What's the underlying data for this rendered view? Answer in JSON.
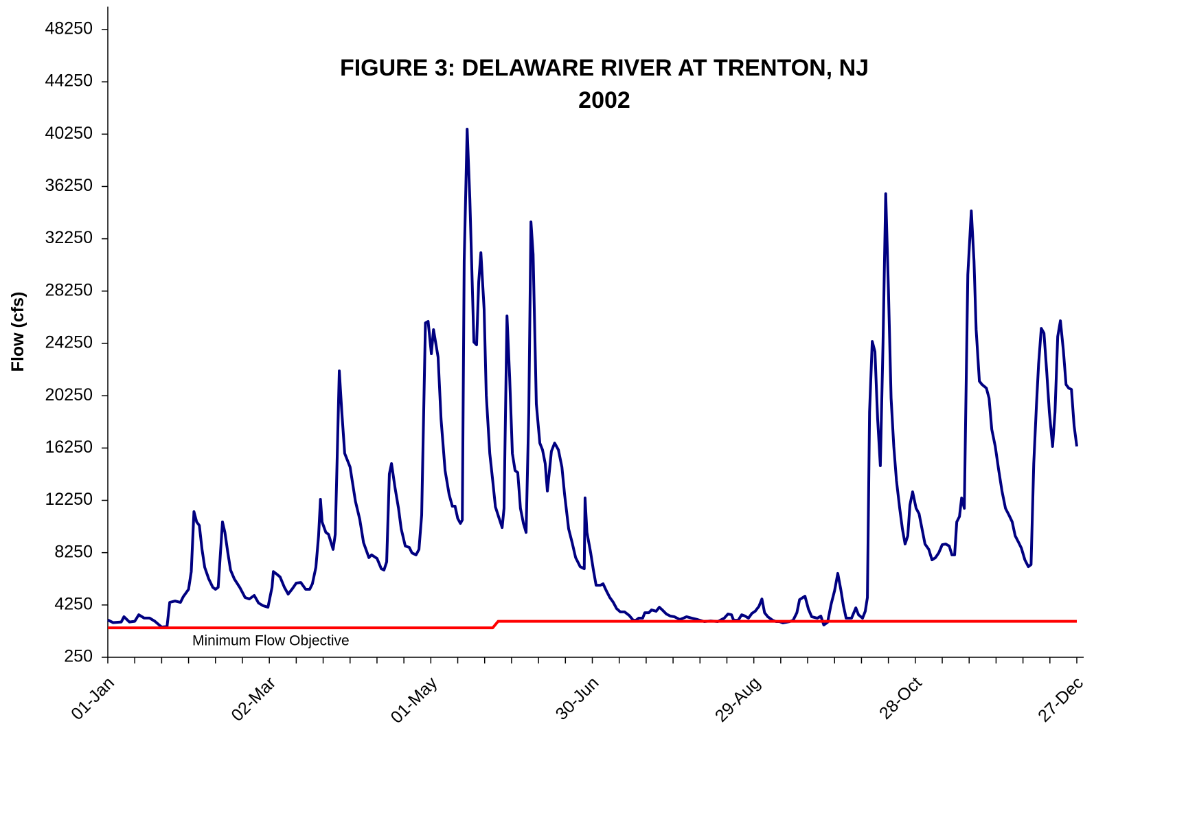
{
  "chart_data": {
    "type": "line",
    "title": "FIGURE 3: DELAWARE RIVER AT TRENTON, NJ",
    "subtitle": "2002",
    "y_label": "Flow (cfs)",
    "annotation": "Minimum Flow Objective",
    "xlim": [
      0,
      360
    ],
    "xticks": [
      {
        "value": 0,
        "label": "01-Jan"
      },
      {
        "value": 60,
        "label": "02-Mar"
      },
      {
        "value": 120,
        "label": "01-May"
      },
      {
        "value": 180,
        "label": "30-Jun"
      },
      {
        "value": 240,
        "label": "29-Aug"
      },
      {
        "value": 300,
        "label": "28-Oct"
      },
      {
        "value": 360,
        "label": "27-Dec"
      }
    ],
    "xminorticks": [
      10,
      20,
      30,
      40,
      50,
      70,
      80,
      90,
      100,
      110,
      130,
      140,
      150,
      160,
      170,
      190,
      200,
      210,
      220,
      230,
      250,
      260,
      270,
      280,
      290,
      310,
      320,
      330,
      340,
      350
    ],
    "ylim": [
      250,
      50000
    ],
    "yticks": [
      250,
      4250,
      8250,
      12250,
      16250,
      20250,
      24250,
      28250,
      32250,
      36250,
      40250,
      44250,
      48250
    ],
    "series": [
      {
        "name": "Flow",
        "color": "#000080",
        "x": [
          0,
          2,
          5,
          6,
          8,
          10,
          11.5,
          13.5,
          15.5,
          17.5,
          20,
          22,
          23,
          25,
          27,
          28,
          30,
          31,
          32,
          33,
          34,
          35,
          36,
          37.5,
          39,
          40,
          41,
          42.6,
          43.5,
          44.6,
          45.6,
          47,
          49,
          51,
          52.6,
          54.4,
          56,
          57.7,
          59.5,
          61,
          61.5,
          62.8,
          64,
          65.6,
          67,
          68.6,
          70,
          71.7,
          73.5,
          75,
          76,
          77.3,
          78.3,
          79,
          79.6,
          81,
          82,
          83.7,
          84.5,
          85,
          86,
          86.9,
          88,
          90,
          92,
          93.6,
          95,
          97,
          98,
          100,
          101.6,
          102.6,
          103.6,
          104.6,
          105.4,
          106.7,
          108,
          109,
          110.5,
          112,
          113,
          114.5,
          115.6,
          116.6,
          118,
          119,
          120.2,
          121,
          122.7,
          123.8,
          125.3,
          126.8,
          128,
          129,
          130,
          131,
          131.7,
          132.4,
          133.5,
          134.5,
          136,
          137,
          137.8,
          138.6,
          139.8,
          140.6,
          141.9,
          143,
          144,
          145.4,
          146.5,
          147.2,
          148.3,
          149.3,
          150.3,
          151.3,
          152.3,
          153.3,
          154.4,
          155.4,
          156.4,
          157.2,
          158,
          159.2,
          160.5,
          161.5,
          162.5,
          163.3,
          164,
          164.8,
          166,
          167.4,
          168.7,
          169.7,
          171.2,
          172.5,
          173.8,
          175.5,
          177,
          177.3,
          178,
          179.4,
          180.4,
          181.4,
          183,
          184,
          185.2,
          186.5,
          187.8,
          189,
          190.4,
          192,
          193.7,
          195.2,
          196.2,
          197.2,
          198.7,
          199.5,
          201,
          202,
          203.7,
          204.9,
          206,
          207.5,
          209,
          210.5,
          212.5,
          213.8,
          215,
          217,
          219,
          221.6,
          224,
          226.6,
          229,
          230.4,
          231.7,
          232.5,
          234.2,
          235.5,
          236.8,
          238,
          239.3,
          240.5,
          241.9,
          243,
          244,
          245.2,
          247,
          248.3,
          249.5,
          250.8,
          253.3,
          254.6,
          256,
          257,
          259,
          260.3,
          261.5,
          263.6,
          264.9,
          266,
          267.4,
          268.7,
          270,
          271.2,
          272.3,
          273.3,
          274.3,
          276.3,
          277.9,
          278.9,
          280.4,
          281.4,
          282.2,
          283,
          284,
          285,
          286,
          287,
          288,
          289,
          290,
          291,
          292,
          293,
          294.2,
          295.2,
          296.2,
          297.2,
          298,
          299,
          300.3,
          301.4,
          302.4,
          303.6,
          305,
          306.2,
          307.5,
          308.7,
          310,
          311.3,
          312.6,
          313.6,
          314.6,
          315.4,
          316.4,
          317.2,
          318.2,
          319.5,
          320.8,
          321.8,
          322.6,
          323.8,
          324.8,
          326.4,
          327.4,
          328.4,
          329.7,
          331,
          332.2,
          333.5,
          334.8,
          336,
          337.1,
          338.4,
          339.4,
          340.7,
          342,
          343,
          344,
          345,
          345.8,
          346.8,
          347.8,
          348.8,
          349.8,
          351,
          351.9,
          352.9,
          353.9,
          355,
          356,
          357,
          358,
          359,
          360
        ],
        "values": [
          3100,
          2900,
          2950,
          3350,
          2950,
          3000,
          3500,
          3250,
          3250,
          3000,
          2560,
          2600,
          4450,
          4550,
          4450,
          4870,
          5450,
          6800,
          11380,
          10600,
          10330,
          8500,
          7130,
          6240,
          5600,
          5450,
          5600,
          10600,
          9800,
          8230,
          6920,
          6240,
          5600,
          4820,
          4710,
          4980,
          4400,
          4190,
          4080,
          5600,
          6800,
          6600,
          6390,
          5600,
          5080,
          5500,
          5920,
          5970,
          5450,
          5450,
          5870,
          7130,
          9540,
          12330,
          10600,
          9800,
          9650,
          8500,
          9650,
          13750,
          22150,
          19100,
          15840,
          14800,
          12170,
          10800,
          9020,
          7870,
          8080,
          7810,
          7020,
          6920,
          7550,
          14270,
          15060,
          13220,
          11640,
          10070,
          8760,
          8650,
          8230,
          8080,
          8500,
          11120,
          25820,
          25930,
          23460,
          25300,
          23200,
          18470,
          14530,
          12700,
          11800,
          11800,
          10860,
          10490,
          10750,
          30550,
          40630,
          35270,
          24350,
          24140,
          28970,
          31180,
          26870,
          20300,
          15840,
          13750,
          11750,
          10860,
          10170,
          11640,
          26350,
          21620,
          15840,
          14530,
          14370,
          11640,
          10490,
          9800,
          19000,
          33540,
          31070,
          19620,
          16630,
          16110,
          15060,
          12960,
          14370,
          16000,
          16630,
          16110,
          14800,
          12700,
          10070,
          9020,
          7870,
          7180,
          7020,
          12430,
          9800,
          8230,
          6920,
          5760,
          5760,
          5870,
          5340,
          4820,
          4450,
          3980,
          3720,
          3720,
          3450,
          3080,
          3080,
          3240,
          3240,
          3660,
          3660,
          3870,
          3770,
          4080,
          3870,
          3560,
          3400,
          3350,
          3140,
          3240,
          3350,
          3240,
          3140,
          2980,
          3030,
          2980,
          3240,
          3560,
          3500,
          3080,
          3080,
          3500,
          3400,
          3240,
          3610,
          3770,
          4140,
          4710,
          3660,
          3350,
          3080,
          2980,
          2980,
          2880,
          2980,
          3080,
          3660,
          4660,
          4920,
          3930,
          3350,
          3240,
          3400,
          2720,
          2930,
          4290,
          5340,
          6660,
          5450,
          4190,
          3240,
          3240,
          4030,
          3500,
          3240,
          3770,
          4820,
          19000,
          24400,
          23620,
          18470,
          14900,
          24250,
          35690,
          28450,
          20060,
          16370,
          13750,
          11640,
          10070,
          8910,
          9540,
          11900,
          12900,
          11640,
          11220,
          10170,
          8910,
          8500,
          7700,
          7870,
          8230,
          8860,
          8910,
          8760,
          8080,
          8080,
          10600,
          11010,
          12430,
          11640,
          29500,
          34380,
          30550,
          25300,
          21360,
          21100,
          20830,
          20060,
          17680,
          16370,
          14530,
          12960,
          11640,
          11120,
          10600,
          9540,
          9020,
          8600,
          7700,
          7180,
          7340,
          15060,
          19520,
          22670,
          25400,
          25030,
          22150,
          19000,
          16370,
          19000,
          24770,
          25980,
          23720,
          21100,
          20830,
          20730,
          17940,
          16370
        ]
      },
      {
        "color": "#ff0000",
        "x": [
          0,
          143,
          145,
          360
        ],
        "values": [
          2500,
          2500,
          3000,
          3000
        ]
      }
    ]
  }
}
